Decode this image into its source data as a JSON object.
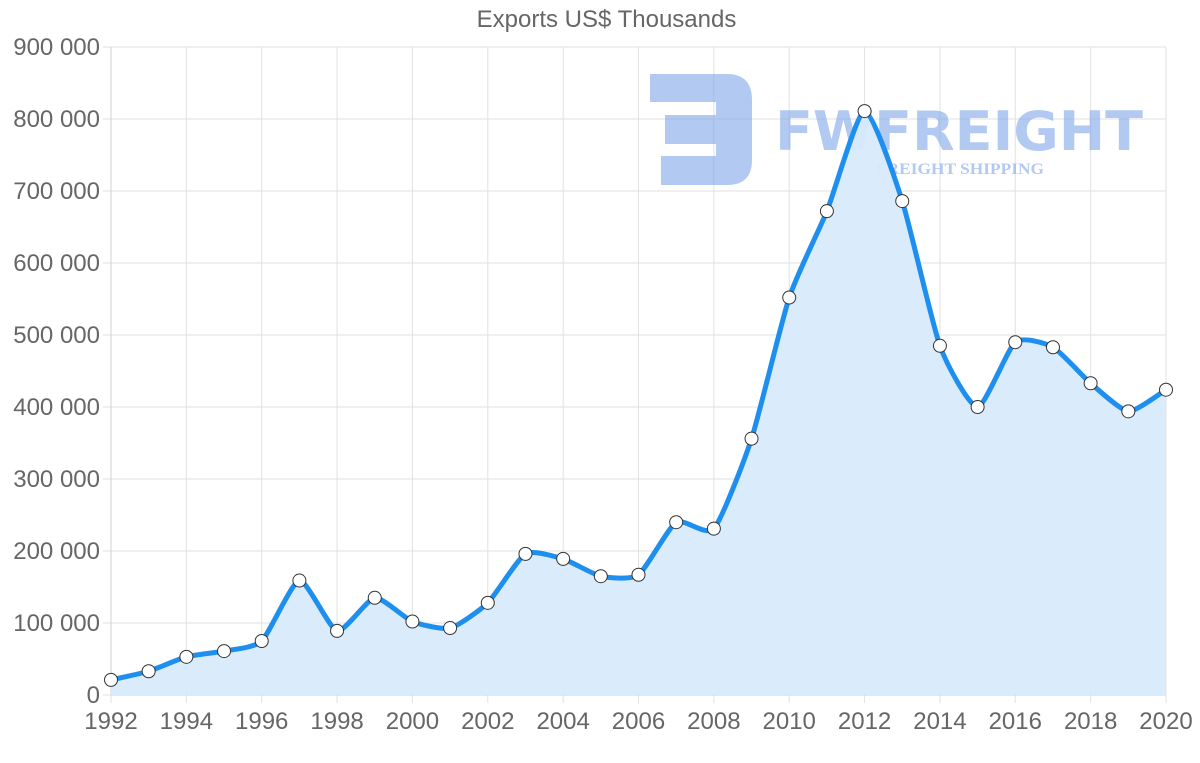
{
  "chart_data": {
    "type": "area",
    "title": "Exports US$ Thousands",
    "xlabel": "",
    "ylabel": "",
    "x": [
      1992,
      1993,
      1994,
      1995,
      1996,
      1997,
      1998,
      1999,
      2000,
      2001,
      2002,
      2003,
      2004,
      2005,
      2006,
      2007,
      2008,
      2009,
      2010,
      2011,
      2012,
      2013,
      2014,
      2015,
      2016,
      2017,
      2018,
      2019,
      2020
    ],
    "series": [
      {
        "name": "Exports US$ Thousands",
        "values": [
          21000,
          33000,
          53000,
          61000,
          75000,
          159000,
          89000,
          135000,
          102000,
          93000,
          128000,
          196000,
          189000,
          165000,
          167000,
          240000,
          231000,
          356000,
          552000,
          672000,
          811000,
          686000,
          485000,
          400000,
          490000,
          483000,
          433000,
          394000,
          424000
        ]
      }
    ],
    "x_tick_labels": [
      "1992",
      "1994",
      "1996",
      "1998",
      "2000",
      "2002",
      "2004",
      "2006",
      "2008",
      "2010",
      "2012",
      "2014",
      "2016",
      "2018",
      "2020"
    ],
    "y_tick_labels": [
      "0",
      "100 000",
      "200 000",
      "300 000",
      "400 000",
      "500 000",
      "600 000",
      "700 000",
      "800 000",
      "900 000"
    ],
    "ylim": [
      0,
      900000
    ],
    "xlim": [
      1992,
      2020
    ],
    "grid": true,
    "legend": "none",
    "colors": {
      "line": "#1e8fef",
      "fill": "#d8ebfc",
      "point_fill": "#ffffff",
      "point_stroke": "#333333",
      "grid": "#e2e2e2",
      "axis_text": "#666666",
      "watermark": "#7fa6ea"
    }
  },
  "watermark": {
    "brand": "FWFREIGHT",
    "tagline": "FREIGHT SHIPPING"
  }
}
